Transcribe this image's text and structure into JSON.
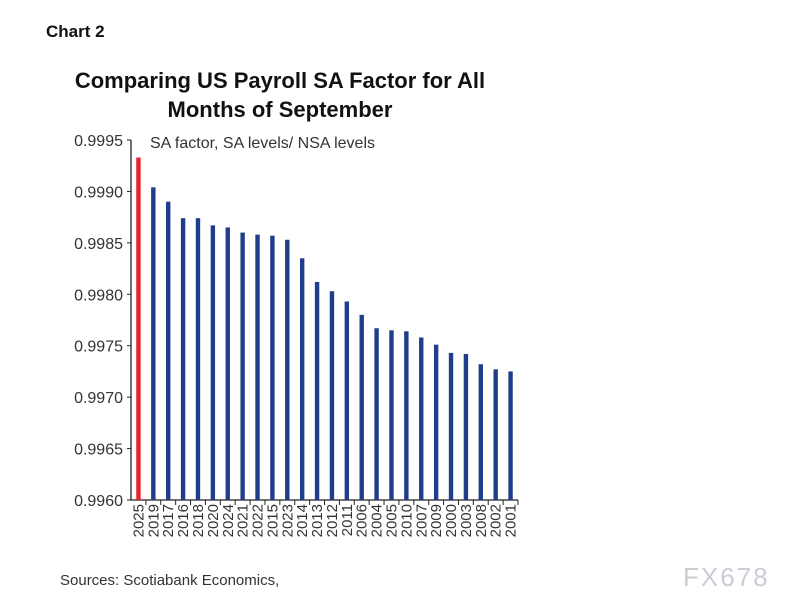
{
  "chart_label": "Chart 2",
  "source": "Sources: Scotiabank Economics,",
  "watermark": "FX678",
  "chart_data": {
    "type": "bar",
    "title": "Comparing US Payroll SA Factor for All Months of September",
    "subtitle": "SA factor, SA levels/ NSA levels",
    "ylim": [
      0.996,
      0.9995
    ],
    "yticks": [
      "0.9995",
      "0.9990",
      "0.9985",
      "0.9980",
      "0.9975",
      "0.9970",
      "0.9965",
      "0.9960"
    ],
    "categories": [
      "2025",
      "2019",
      "2017",
      "2016",
      "2018",
      "2020",
      "2024",
      "2021",
      "2022",
      "2015",
      "2023",
      "2014",
      "2013",
      "2012",
      "2011",
      "2006",
      "2004",
      "2005",
      "2010",
      "2007",
      "2009",
      "2000",
      "2003",
      "2008",
      "2002",
      "2001"
    ],
    "values": [
      0.99933,
      0.99904,
      0.9989,
      0.99874,
      0.99874,
      0.99867,
      0.99865,
      0.9986,
      0.99858,
      0.99857,
      0.99853,
      0.99835,
      0.99812,
      0.99803,
      0.99793,
      0.9978,
      0.99767,
      0.99765,
      0.99764,
      0.99758,
      0.99751,
      0.99743,
      0.99742,
      0.99732,
      0.99727,
      0.99725
    ],
    "colors": {
      "highlight": "#e8202e",
      "bars": "#1f3d8a"
    },
    "grid": false
  }
}
